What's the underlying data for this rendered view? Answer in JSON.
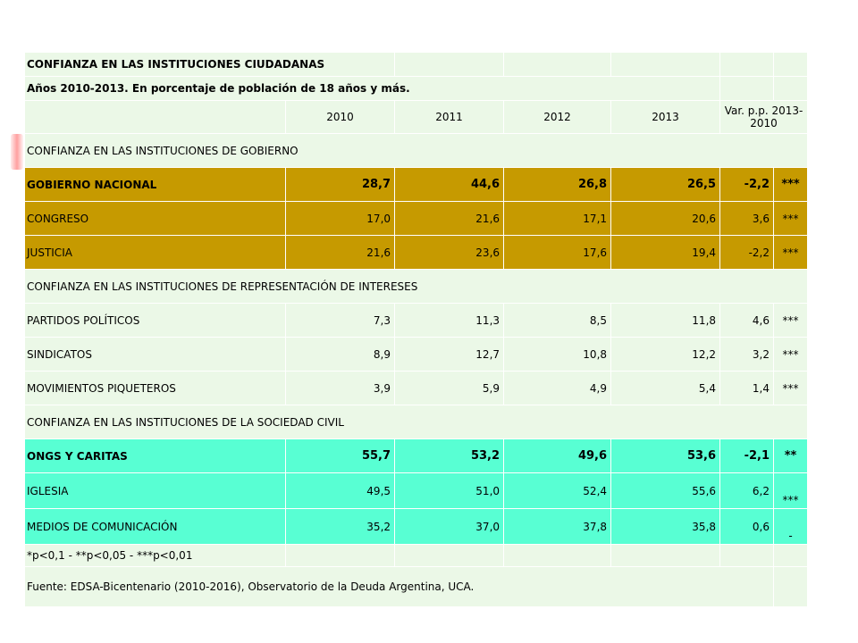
{
  "title": "CONFIANZA EN LAS INSTITUCIONES CIUDADANAS",
  "subtitle": "Años 2010-2013. En porcentaje de población de 18 años y más.",
  "headers": [
    "2010",
    "2011",
    "2012",
    "2013",
    "Var. p.p. 2013-2010"
  ],
  "sections": [
    {
      "heading": "CONFIANZA EN LAS INSTITUCIONES DE GOBIERNO",
      "rows": [
        {
          "label": "GOBIERNO NACIONAL",
          "values": [
            "28,7",
            "44,6",
            "26,8",
            "26,5",
            "-2,2"
          ],
          "sig": "***"
        },
        {
          "label": "CONGRESO",
          "values": [
            "17,0",
            "21,6",
            "17,1",
            "20,6",
            "3,6"
          ],
          "sig": "***"
        },
        {
          "label": "JUSTICIA",
          "values": [
            "21,6",
            "23,6",
            "17,6",
            "19,4",
            "-2,2"
          ],
          "sig": "***"
        }
      ]
    },
    {
      "heading": "CONFIANZA EN LAS INSTITUCIONES DE REPRESENTACIÓN DE INTERESES",
      "rows": [
        {
          "label": "PARTIDOS POLÍTICOS",
          "values": [
            "7,3",
            "11,3",
            "8,5",
            "11,8",
            "4,6"
          ],
          "sig": "***"
        },
        {
          "label": "SINDICATOS",
          "values": [
            "8,9",
            "12,7",
            "10,8",
            "12,2",
            "3,2"
          ],
          "sig": "***"
        },
        {
          "label": "MOVIMIENTOS PIQUETEROS",
          "values": [
            "3,9",
            "5,9",
            "4,9",
            "5,4",
            "1,4"
          ],
          "sig": "***"
        }
      ]
    },
    {
      "heading": "CONFIANZA EN LAS INSTITUCIONES DE LA SOCIEDAD CIVIL",
      "rows": [
        {
          "label": "ONGS Y CARITAS",
          "values": [
            "55,7",
            "53,2",
            "49,6",
            "53,6",
            "-2,1"
          ],
          "sig": "**"
        },
        {
          "label": "IGLESIA",
          "values": [
            "49,5",
            "51,0",
            "52,4",
            "55,6",
            "6,2"
          ],
          "sig": "***"
        },
        {
          "label": "MEDIOS DE COMUNICACIÓN",
          "values": [
            "35,2",
            "37,0",
            "37,8",
            "35,8",
            "0,6"
          ],
          "sig": "-"
        }
      ]
    }
  ],
  "footnote": "*p<0,1 - **p<0,05 - ***p<0,01",
  "source": "Fuente: EDSA-Bicentenario (2010-2016), Observatorio de la Deuda Argentina, UCA.",
  "colors": {
    "background_cells": "#ebf8e7",
    "gold_rows": "#c69a00",
    "teal_rows": "#58ffd3"
  }
}
